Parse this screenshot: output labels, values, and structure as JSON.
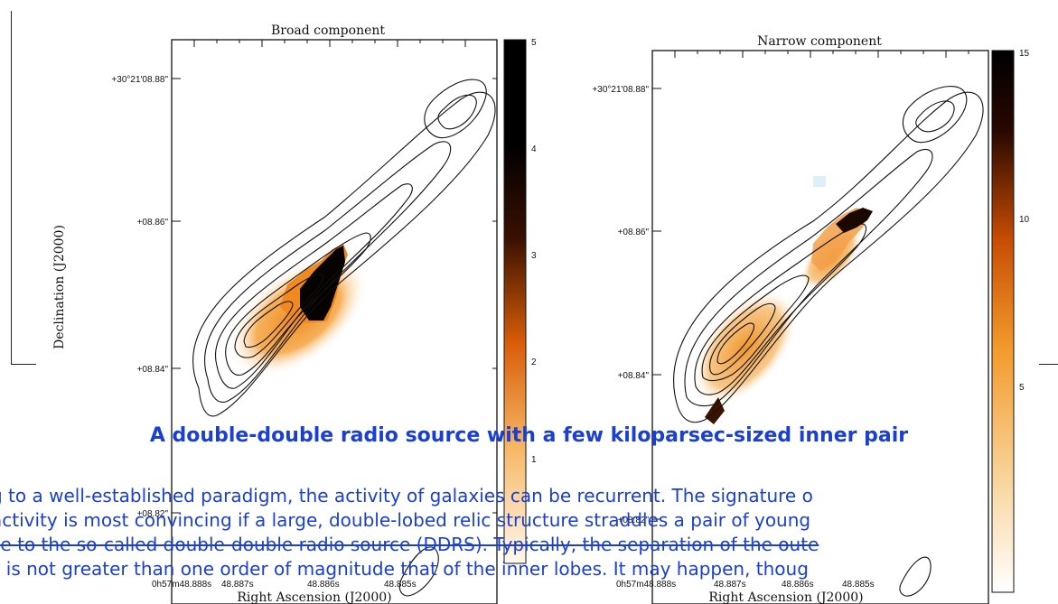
{
  "panels": [
    {
      "title": "Broad component",
      "dec_ticks": [
        "+30°21'08.88\"",
        "+08.86\"",
        "+08.84\"",
        "+08.82\""
      ],
      "ra_ticks": [
        "0h57m48.888s",
        "48.887s",
        "48.886s",
        "48.885s"
      ],
      "ra_label": "Right Ascension (J2000)",
      "dec_label": "Declination (J2000)",
      "colorbar": {
        "max": "5",
        "ticks": [
          "5",
          "4",
          "3",
          "2",
          "1"
        ],
        "cmap": "black-orange-white"
      }
    },
    {
      "title": "Narrow component",
      "dec_ticks": [
        "+30°21'08.88\"",
        "+08.86\"",
        "+08.84\"",
        "+08.82\""
      ],
      "ra_ticks": [
        "0h57m48.888s",
        "48.887s",
        "48.886s",
        "48.885s"
      ],
      "ra_label": "Right Ascension (J2000)",
      "colorbar": {
        "max": "15",
        "ticks": [
          "15",
          "10",
          "5"
        ],
        "cmap": "black-orange-white"
      }
    }
  ],
  "article": {
    "headline": "A double-double radio source with a few kiloparsec-sized inner pair",
    "lines": [
      "g to a well-established paradigm, the activity of galaxies can be recurrent. The signature o",
      " activity is most convincing if a large, double-lobed relic structure straddles a pair of young",
      "se to the so-called double-double radio source (DDRS). Typically, the separation of the oute",
      "s is not greater than one order of magnitude that of the inner lobes. It may happen, thoug"
    ]
  },
  "colors": {
    "text_blue": "#1a3fd4",
    "orange": "#e8841a",
    "dark": "#1a0a00"
  }
}
